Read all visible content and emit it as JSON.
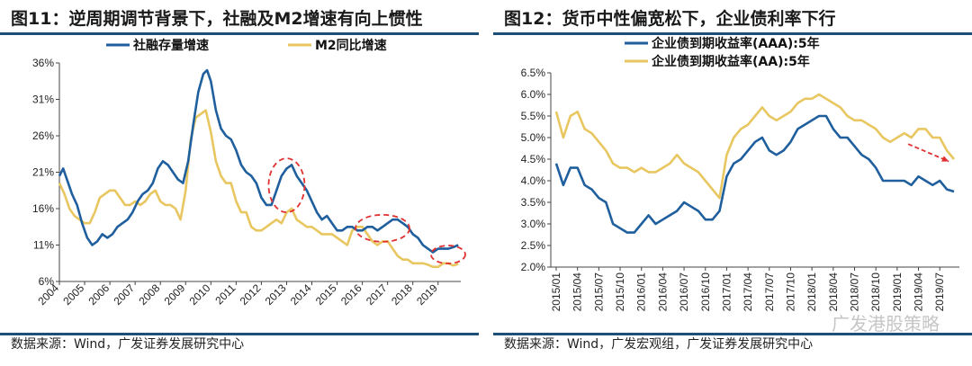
{
  "panels": [
    {
      "title": "图11：逆周期调节背景下，社融及M2增速有向上惯性",
      "source": "数据来源：Wind，广发证券发展研究中心"
    },
    {
      "title": "图12：货币中性偏宽松下，企业债利率下行",
      "source": "数据来源：Wind，广发宏观组，广发证券发展研究中心",
      "watermark": "广发港股策略"
    }
  ],
  "chart_data": [
    {
      "type": "line",
      "title": "",
      "xlabel": "",
      "ylabel": "",
      "x_ticks": [
        "2004",
        "2005",
        "2006",
        "2007",
        "2008",
        "2009",
        "2010",
        "2011",
        "2012",
        "2013",
        "2014",
        "2015",
        "2016",
        "2017",
        "2018",
        "2019"
      ],
      "y_ticks": [
        "36%",
        "31%",
        "26%",
        "21%",
        "16%",
        "11%",
        "6%"
      ],
      "ylim": [
        6,
        36
      ],
      "xlim": [
        2004.0,
        2019.9
      ],
      "grid": false,
      "legend": "top",
      "colors": {
        "社融存量增速": "#1f5f9e",
        "M2同比增速": "#e8c660"
      },
      "annotations": [
        "red dashed ellipse around 2013 peak",
        "red dashed ellipse around 2016-2017",
        "red dashed ellipse around late 2019"
      ],
      "series": [
        {
          "name": "社融存量增速",
          "x": [
            2004.0,
            2004.15,
            2004.3,
            2004.5,
            2004.7,
            2004.9,
            2005.1,
            2005.3,
            2005.5,
            2005.7,
            2005.9,
            2006.1,
            2006.3,
            2006.5,
            2006.7,
            2006.9,
            2007.1,
            2007.3,
            2007.5,
            2007.7,
            2007.9,
            2008.1,
            2008.3,
            2008.5,
            2008.7,
            2008.9,
            2009.1,
            2009.3,
            2009.5,
            2009.7,
            2009.85,
            2010.0,
            2010.2,
            2010.4,
            2010.6,
            2010.8,
            2011.0,
            2011.2,
            2011.4,
            2011.6,
            2011.8,
            2012.0,
            2012.2,
            2012.4,
            2012.6,
            2012.8,
            2013.0,
            2013.2,
            2013.4,
            2013.6,
            2013.8,
            2014.0,
            2014.2,
            2014.4,
            2014.6,
            2014.8,
            2015.0,
            2015.2,
            2015.4,
            2015.6,
            2015.8,
            2016.0,
            2016.2,
            2016.4,
            2016.6,
            2016.8,
            2017.0,
            2017.2,
            2017.4,
            2017.6,
            2017.8,
            2018.0,
            2018.2,
            2018.4,
            2018.6,
            2018.8,
            2019.0,
            2019.2,
            2019.4,
            2019.6,
            2019.8
          ],
          "values": [
            20.5,
            21.5,
            20.0,
            18.0,
            16.5,
            14.0,
            12.0,
            11.0,
            11.5,
            12.5,
            12.0,
            12.5,
            13.5,
            14.0,
            14.5,
            15.5,
            17.0,
            18.0,
            18.5,
            19.5,
            21.5,
            22.5,
            22.0,
            21.0,
            20.0,
            19.5,
            22.5,
            27.5,
            32.0,
            34.5,
            35.0,
            33.5,
            29.5,
            27.0,
            26.0,
            25.5,
            24.0,
            22.0,
            21.0,
            20.5,
            19.5,
            17.5,
            16.5,
            16.5,
            18.5,
            20.5,
            21.5,
            22.0,
            20.5,
            19.5,
            18.5,
            17.0,
            15.5,
            14.5,
            15.0,
            14.0,
            13.0,
            13.0,
            13.5,
            13.5,
            13.0,
            13.0,
            13.5,
            13.5,
            13.0,
            13.5,
            14.0,
            14.5,
            14.5,
            14.0,
            13.5,
            12.5,
            12.0,
            11.0,
            10.5,
            10.0,
            10.5,
            10.5,
            10.5,
            10.7,
            11.0
          ]
        },
        {
          "name": "M2同比增速",
          "x": [
            2004.0,
            2004.2,
            2004.4,
            2004.6,
            2004.8,
            2005.0,
            2005.2,
            2005.4,
            2005.6,
            2005.8,
            2006.0,
            2006.2,
            2006.4,
            2006.6,
            2006.8,
            2007.0,
            2007.2,
            2007.4,
            2007.6,
            2007.8,
            2008.0,
            2008.2,
            2008.4,
            2008.6,
            2008.8,
            2009.0,
            2009.2,
            2009.4,
            2009.6,
            2009.8,
            2010.0,
            2010.2,
            2010.4,
            2010.6,
            2010.8,
            2011.0,
            2011.2,
            2011.4,
            2011.6,
            2011.8,
            2012.0,
            2012.2,
            2012.4,
            2012.6,
            2012.8,
            2013.0,
            2013.2,
            2013.4,
            2013.6,
            2013.8,
            2014.0,
            2014.2,
            2014.4,
            2014.6,
            2014.8,
            2015.0,
            2015.2,
            2015.4,
            2015.6,
            2015.8,
            2016.0,
            2016.2,
            2016.4,
            2016.6,
            2016.8,
            2017.0,
            2017.2,
            2017.4,
            2017.6,
            2017.8,
            2018.0,
            2018.2,
            2018.4,
            2018.6,
            2018.8,
            2019.0,
            2019.2,
            2019.4,
            2019.6,
            2019.8
          ],
          "values": [
            19.5,
            18.0,
            16.0,
            15.0,
            14.5,
            14.0,
            14.0,
            15.5,
            17.5,
            18.0,
            18.5,
            18.5,
            17.5,
            16.5,
            16.5,
            17.0,
            16.5,
            17.0,
            18.0,
            18.5,
            17.0,
            16.5,
            16.5,
            16.0,
            14.5,
            18.5,
            25.5,
            28.5,
            29.0,
            29.5,
            26.5,
            22.5,
            20.5,
            19.5,
            19.5,
            17.0,
            15.5,
            15.5,
            13.5,
            13.0,
            13.0,
            13.5,
            14.0,
            14.5,
            14.0,
            15.5,
            16.0,
            14.5,
            14.0,
            13.5,
            13.5,
            13.0,
            12.5,
            12.5,
            12.5,
            12.0,
            11.5,
            11.0,
            13.0,
            13.5,
            13.5,
            12.5,
            11.5,
            11.0,
            11.5,
            11.5,
            10.5,
            9.5,
            9.0,
            9.0,
            8.5,
            8.5,
            8.5,
            8.3,
            8.0,
            8.0,
            8.5,
            8.5,
            8.2,
            8.4
          ]
        }
      ]
    },
    {
      "type": "line",
      "title": "",
      "xlabel": "",
      "ylabel": "",
      "x_ticks": [
        "2015/01",
        "2015/04",
        "2015/07",
        "2015/10",
        "2016/01",
        "2016/04",
        "2016/07",
        "2016/10",
        "2017/01",
        "2017/04",
        "2017/07",
        "2017/10",
        "2018/01",
        "2018/04",
        "2018/07",
        "2018/10",
        "2019/01",
        "2019/04",
        "2019/07"
      ],
      "y_ticks": [
        "6.5%",
        "6.0%",
        "5.5%",
        "5.0%",
        "4.5%",
        "4.0%",
        "3.5%",
        "3.0%",
        "2.5%",
        "2.0%"
      ],
      "ylim": [
        2.0,
        6.5
      ],
      "grid": false,
      "legend": "top",
      "colors": {
        "企业债到期收益率(AAA):5年": "#1f5f9e",
        "企业债到期收益率(AA):5年": "#e8c660"
      },
      "annotations": [
        "red dashed downward arrow, late 2019"
      ],
      "series": [
        {
          "name": "企业债到期收益率(AAA):5年",
          "x": [
            "2015/01",
            "2015/02",
            "2015/03",
            "2015/04",
            "2015/05",
            "2015/06",
            "2015/07",
            "2015/08",
            "2015/09",
            "2015/10",
            "2015/11",
            "2015/12",
            "2016/01",
            "2016/02",
            "2016/03",
            "2016/04",
            "2016/05",
            "2016/06",
            "2016/07",
            "2016/08",
            "2016/09",
            "2016/10",
            "2016/11",
            "2016/12",
            "2017/01",
            "2017/02",
            "2017/03",
            "2017/04",
            "2017/05",
            "2017/06",
            "2017/07",
            "2017/08",
            "2017/09",
            "2017/10",
            "2017/11",
            "2017/12",
            "2018/01",
            "2018/02",
            "2018/03",
            "2018/04",
            "2018/05",
            "2018/06",
            "2018/07",
            "2018/08",
            "2018/09",
            "2018/10",
            "2018/11",
            "2018/12",
            "2019/01",
            "2019/02",
            "2019/03",
            "2019/04",
            "2019/05",
            "2019/06",
            "2019/07",
            "2019/08",
            "2019/09"
          ],
          "values": [
            4.4,
            3.9,
            4.3,
            4.3,
            3.9,
            3.8,
            3.6,
            3.5,
            3.0,
            2.9,
            2.8,
            2.8,
            3.0,
            3.2,
            3.0,
            3.1,
            3.2,
            3.3,
            3.5,
            3.4,
            3.3,
            3.1,
            3.1,
            3.3,
            4.1,
            4.4,
            4.5,
            4.7,
            4.9,
            5.0,
            4.7,
            4.6,
            4.7,
            4.9,
            5.2,
            5.3,
            5.4,
            5.5,
            5.5,
            5.2,
            5.0,
            5.0,
            4.8,
            4.6,
            4.5,
            4.3,
            4.0,
            4.0,
            4.0,
            4.0,
            3.9,
            4.1,
            4.0,
            3.9,
            4.0,
            3.8,
            3.75
          ]
        },
        {
          "name": "企业债到期收益率(AA):5年",
          "x": [
            "2015/01",
            "2015/02",
            "2015/03",
            "2015/04",
            "2015/05",
            "2015/06",
            "2015/07",
            "2015/08",
            "2015/09",
            "2015/10",
            "2015/11",
            "2015/12",
            "2016/01",
            "2016/02",
            "2016/03",
            "2016/04",
            "2016/05",
            "2016/06",
            "2016/07",
            "2016/08",
            "2016/09",
            "2016/10",
            "2016/11",
            "2016/12",
            "2017/01",
            "2017/02",
            "2017/03",
            "2017/04",
            "2017/05",
            "2017/06",
            "2017/07",
            "2017/08",
            "2017/09",
            "2017/10",
            "2017/11",
            "2017/12",
            "2018/01",
            "2018/02",
            "2018/03",
            "2018/04",
            "2018/05",
            "2018/06",
            "2018/07",
            "2018/08",
            "2018/09",
            "2018/10",
            "2018/11",
            "2018/12",
            "2019/01",
            "2019/02",
            "2019/03",
            "2019/04",
            "2019/05",
            "2019/06",
            "2019/07",
            "2019/08",
            "2019/09"
          ],
          "values": [
            5.6,
            5.0,
            5.5,
            5.6,
            5.2,
            5.1,
            4.9,
            4.7,
            4.4,
            4.3,
            4.3,
            4.2,
            4.3,
            4.2,
            4.2,
            4.3,
            4.4,
            4.6,
            4.4,
            4.3,
            4.2,
            4.0,
            3.8,
            3.6,
            4.6,
            5.0,
            5.2,
            5.3,
            5.5,
            5.7,
            5.5,
            5.4,
            5.5,
            5.6,
            5.8,
            5.9,
            5.9,
            6.0,
            5.9,
            5.8,
            5.7,
            5.5,
            5.4,
            5.4,
            5.3,
            5.2,
            5.0,
            4.9,
            5.0,
            5.1,
            5.0,
            5.2,
            5.2,
            5.0,
            5.0,
            4.7,
            4.5
          ]
        }
      ]
    }
  ]
}
